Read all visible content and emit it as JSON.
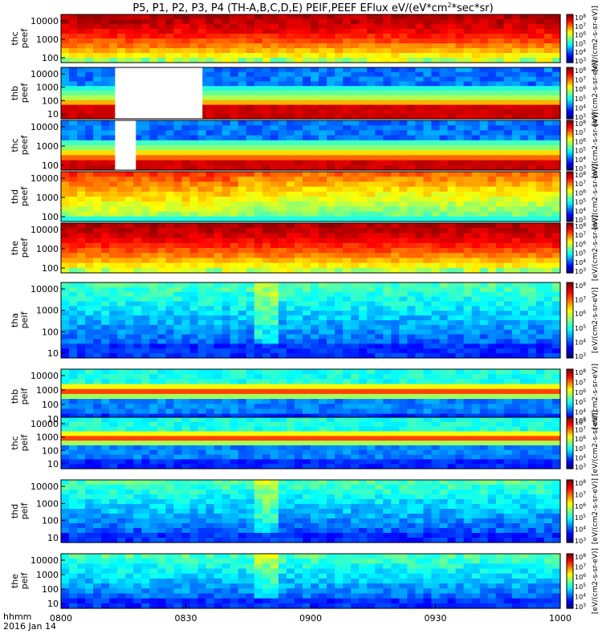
{
  "chart_data": {
    "type": "heatmap",
    "title": "P5, P1, P2, P3, P4 (TH-A,B,C,D,E) PEIF,PEEF EFlux eV/(eV*cm",
    "title_sup": "2",
    "title_tail": "*sec*sr)",
    "x_ticks": [
      "0800",
      "0830",
      "0900",
      "0930",
      "1000"
    ],
    "x_range": [
      "0800",
      "1000"
    ],
    "footer": [
      "hhmm",
      "2016 Jan 14"
    ],
    "y_scale": "log",
    "panels": [
      {
        "probe": "thc",
        "type": "peef",
        "ylabel": [
          "thc",
          "peef"
        ],
        "yticks": [
          "10000",
          "1000",
          "100"
        ],
        "ytick_exp": [
          4,
          3,
          2
        ],
        "cb_ticks": [
          "10",
          "10",
          "10",
          "10",
          "10",
          "10"
        ],
        "cb_exp": [
          "8",
          "7",
          "6",
          "5",
          "4",
          "3"
        ],
        "cb_label": "[eV/(cm2-s-sr-eV)]",
        "intensity": "high",
        "gaps": []
      },
      {
        "probe": "thb",
        "type": "peef",
        "ylabel": [
          "thb",
          "peef"
        ],
        "yticks": [
          "10000",
          "1000",
          "100",
          "10"
        ],
        "ytick_exp": [
          4,
          3,
          2,
          1
        ],
        "cb_ticks": [
          "10",
          "10",
          "10",
          "10",
          "10",
          "10"
        ],
        "cb_exp": [
          "8",
          "7",
          "6",
          "5",
          "4",
          "3"
        ],
        "cb_label": "[eV/(cm2-s-sr-eV)]",
        "intensity": "cold",
        "gaps": [
          [
            "0813",
            "0834"
          ]
        ]
      },
      {
        "probe": "thc",
        "type": "peef",
        "ylabel": [
          "thc",
          "peef"
        ],
        "yticks": [
          "10000",
          "1000",
          "100"
        ],
        "ytick_exp": [
          4,
          3,
          2
        ],
        "cb_ticks": [
          "10",
          "10",
          "10",
          "10",
          "10",
          "10"
        ],
        "cb_exp": [
          "8",
          "7",
          "6",
          "5",
          "4",
          "3"
        ],
        "cb_label": "[eV/(cm2-s-sr-eV)]",
        "intensity": "cold",
        "gaps": [
          [
            "0813",
            "0818"
          ]
        ]
      },
      {
        "probe": "thd",
        "type": "peef",
        "ylabel": [
          "thd",
          "peef"
        ],
        "yticks": [
          "10000",
          "1000",
          "100"
        ],
        "ytick_exp": [
          4,
          3,
          2
        ],
        "cb_ticks": [
          "10",
          "10",
          "10",
          "10",
          "10",
          "10"
        ],
        "cb_exp": [
          "8",
          "7",
          "6",
          "5",
          "4",
          "3"
        ],
        "cb_label": "[eV/(cm2-s-sr-eV)]",
        "intensity": "mid",
        "gaps": []
      },
      {
        "probe": "the",
        "type": "peef",
        "ylabel": [
          "the",
          "peef"
        ],
        "yticks": [
          "10000",
          "1000",
          "100"
        ],
        "ytick_exp": [
          4,
          3,
          2
        ],
        "cb_ticks": [
          "10",
          "10",
          "10",
          "10",
          "10",
          "10"
        ],
        "cb_exp": [
          "8",
          "7",
          "6",
          "5",
          "4",
          "3"
        ],
        "cb_label": "[eV/(cm2-s-sr-eV)]",
        "intensity": "high",
        "gaps": []
      },
      {
        "probe": "tha",
        "type": "peif",
        "ylabel": [
          "tha",
          "peif"
        ],
        "yticks": [
          "10000",
          "1000",
          "100",
          "10"
        ],
        "ytick_exp": [
          4,
          3,
          2,
          1
        ],
        "cb_ticks": [
          "10",
          "10",
          "10",
          "10",
          "10",
          "10"
        ],
        "cb_exp": [
          "8",
          "7",
          "6",
          "5",
          "4",
          "3"
        ],
        "cb_label": "[eV/(cm2-s-sr-eV)]",
        "intensity": "ion",
        "gaps": []
      },
      {
        "probe": "thb",
        "type": "peif",
        "ylabel": [
          "thb",
          "peif"
        ],
        "yticks": [
          "10000",
          "1000",
          "100",
          "10"
        ],
        "ytick_exp": [
          4,
          3,
          2,
          1
        ],
        "cb_ticks": [
          "10",
          "10",
          "10",
          "10",
          "10",
          "10"
        ],
        "cb_exp": [
          "8",
          "7",
          "6",
          "5",
          "4",
          "3"
        ],
        "cb_label": "[eV/(cm2-s-sr-eV)]",
        "intensity": "ionband",
        "gaps": []
      },
      {
        "probe": "thc",
        "type": "peif",
        "ylabel": [
          "thc",
          "peif"
        ],
        "yticks": [
          "10000",
          "1000",
          "100",
          "10"
        ],
        "ytick_exp": [
          4,
          3,
          2,
          1
        ],
        "cb_ticks": [
          "10",
          "10",
          "10",
          "10",
          "10",
          "10"
        ],
        "cb_exp": [
          "8",
          "7",
          "6",
          "5",
          "4",
          "3"
        ],
        "cb_label": "[eV/(cm2-s-sr-eV)]",
        "intensity": "ionband",
        "gaps": []
      },
      {
        "probe": "thd",
        "type": "peif",
        "ylabel": [
          "thd",
          "peif"
        ],
        "yticks": [
          "10000",
          "1000",
          "100",
          "10"
        ],
        "ytick_exp": [
          4,
          3,
          2,
          1
        ],
        "cb_ticks": [
          "10",
          "10",
          "10",
          "10",
          "10",
          "10"
        ],
        "cb_exp": [
          "8",
          "7",
          "6",
          "5",
          "4",
          "3"
        ],
        "cb_label": "[eV/(cm2-s-sr-eV)]",
        "intensity": "ion",
        "gaps": []
      },
      {
        "probe": "the",
        "type": "peif",
        "ylabel": [
          "the",
          "peif"
        ],
        "yticks": [
          "10000",
          "1000",
          "100",
          "10"
        ],
        "ytick_exp": [
          4,
          3,
          2,
          1
        ],
        "cb_ticks": [
          "10",
          "10",
          "10",
          "10",
          "10",
          "10"
        ],
        "cb_exp": [
          "8",
          "7",
          "6",
          "5",
          "4",
          "3"
        ],
        "cb_label": "[eV/(cm2-s-sr-eV)]",
        "intensity": "ion",
        "gaps": []
      }
    ]
  }
}
